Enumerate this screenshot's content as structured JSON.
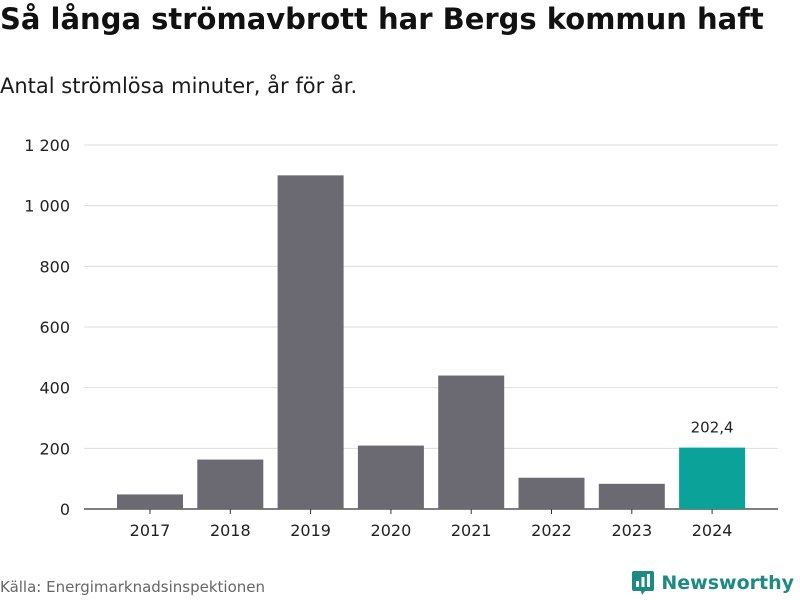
{
  "title": "Så långa strömavbrott har Bergs kommun haft",
  "subtitle": "Antal strömlösa minuter, år för år.",
  "source": "Källa: Energimarknadsinspektionen",
  "brand": {
    "name": "Newsworthy",
    "icon": "newsworthy-logo-icon",
    "color": "#1e8a84"
  },
  "colors": {
    "bar": "#6b6a72",
    "highlight": "#0ba29a",
    "grid": "#dddddd",
    "axis": "#333333"
  },
  "chart_data": {
    "type": "bar",
    "title": "Så långa strömavbrott har Bergs kommun haft",
    "subtitle": "Antal strömlösa minuter, år för år.",
    "xlabel": "",
    "ylabel": "",
    "categories": [
      "2017",
      "2018",
      "2019",
      "2020",
      "2021",
      "2022",
      "2023",
      "2024"
    ],
    "values": [
      48,
      163,
      1100,
      209,
      440,
      103,
      83,
      202.4
    ],
    "highlight_index": 7,
    "data_labels": [
      {
        "index": 7,
        "text": "202,4"
      }
    ],
    "ylim": [
      0,
      1200
    ],
    "yticks": [
      0,
      200,
      400,
      600,
      800,
      1000,
      1200
    ],
    "ytick_labels": [
      "0",
      "200",
      "400",
      "600",
      "800",
      "1 000",
      "1 200"
    ],
    "grid": true
  }
}
